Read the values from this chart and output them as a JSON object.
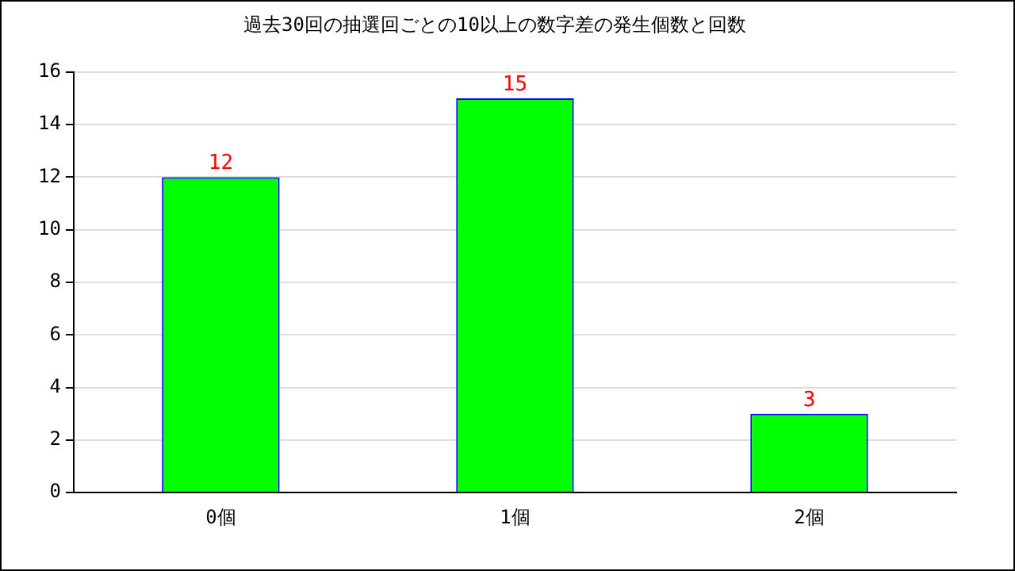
{
  "chart_data": {
    "type": "bar",
    "title": "過去30回の抽選回ごとの10以上の数字差の発生個数と回数",
    "categories": [
      "0個",
      "1個",
      "2個"
    ],
    "series": [
      {
        "color": "#00ff00",
        "values": [
          12,
          15,
          3
        ]
      }
    ],
    "ylim": [
      0,
      16
    ],
    "yticks": [
      0,
      2,
      4,
      6,
      8,
      10,
      12,
      14,
      16
    ],
    "grid": "y",
    "legend": false,
    "data_labels": true
  }
}
